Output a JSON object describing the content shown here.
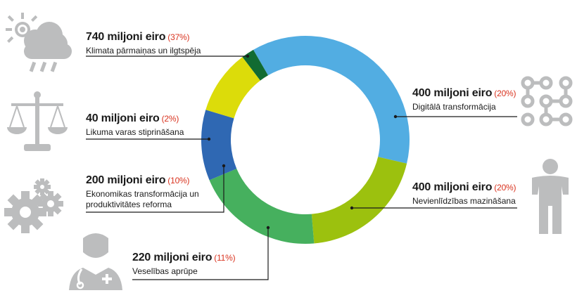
{
  "chart_data": {
    "type": "pie",
    "unit": "miljoni eiro",
    "slices": [
      {
        "value": 740,
        "pct_label": "(37%)",
        "amount_label": "740 miljoni eiro",
        "caption": [
          "Klimata pārmaiņas un ilgtspēja"
        ],
        "color": "#52ade2"
      },
      {
        "value": 400,
        "pct_label": "(20%)",
        "amount_label": "400 miljoni eiro",
        "caption": [
          "Digitālā transformācija"
        ],
        "color": "#9cc10e"
      },
      {
        "value": 400,
        "pct_label": "(20%)",
        "amount_label": "400 miljoni eiro",
        "caption": [
          "Nevienlīdzības mazināšana"
        ],
        "color": "#46b05e"
      },
      {
        "value": 220,
        "pct_label": "(11%)",
        "amount_label": "220 miljoni eiro",
        "caption": [
          "Veselības aprūpe"
        ],
        "color": "#2f68b3"
      },
      {
        "value": 200,
        "pct_label": "(10%)",
        "amount_label": "200 miljoni eiro",
        "caption": [
          "Ekonomikas transformācija un",
          "produktivitātes reforma"
        ],
        "color": "#dcdc0a"
      },
      {
        "value": 40,
        "pct_label": "(2%)",
        "amount_label": "40 miljoni eiro",
        "caption": [
          "Likuma varas stiprināšana"
        ],
        "color": "#116b32"
      }
    ],
    "icon_color": "#bcbdbe",
    "connector_color": "#1a1a1a",
    "label_accent_color": "#d9331f"
  },
  "icons": [
    "weather-icon",
    "digital-network-icon",
    "person-icon",
    "doctor-icon",
    "gears-icon",
    "scales-icon"
  ]
}
